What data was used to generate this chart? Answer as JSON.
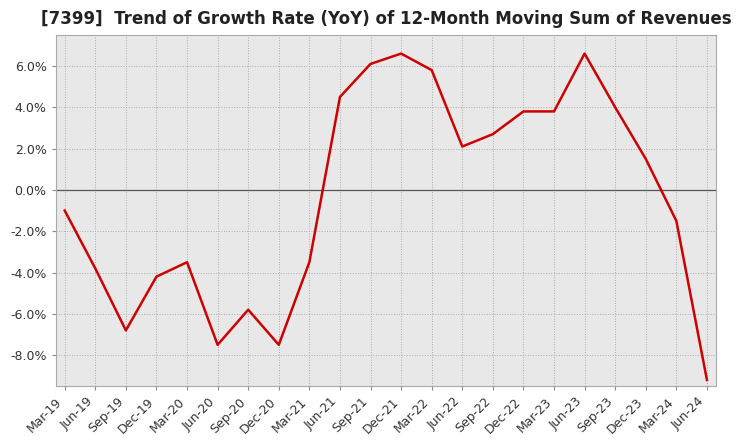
{
  "title": "[7399]  Trend of Growth Rate (YoY) of 12-Month Moving Sum of Revenues",
  "x_labels": [
    "Mar-19",
    "Jun-19",
    "Sep-19",
    "Dec-19",
    "Mar-20",
    "Jun-20",
    "Sep-20",
    "Dec-20",
    "Mar-21",
    "Jun-21",
    "Sep-21",
    "Dec-21",
    "Mar-22",
    "Jun-22",
    "Sep-22",
    "Dec-22",
    "Mar-23",
    "Jun-23",
    "Sep-23",
    "Dec-23",
    "Mar-24",
    "Jun-24"
  ],
  "y_values": [
    -1.0,
    -3.8,
    -6.8,
    -4.2,
    -3.5,
    -7.5,
    -5.8,
    -7.5,
    -3.5,
    4.5,
    6.1,
    6.6,
    5.8,
    2.1,
    2.7,
    3.8,
    3.8,
    6.6,
    4.0,
    1.5,
    -1.5,
    -9.2
  ],
  "line_color": "#cc0000",
  "ylim": [
    -9.5,
    7.5
  ],
  "yticks": [
    -8.0,
    -6.0,
    -4.0,
    -2.0,
    0.0,
    2.0,
    4.0,
    6.0
  ],
  "grid_color": "#aaaaaa",
  "plot_bg_color": "#e8e8e8",
  "fig_bg_color": "#ffffff",
  "title_fontsize": 12,
  "tick_fontsize": 9,
  "zero_line_color": "#555555"
}
